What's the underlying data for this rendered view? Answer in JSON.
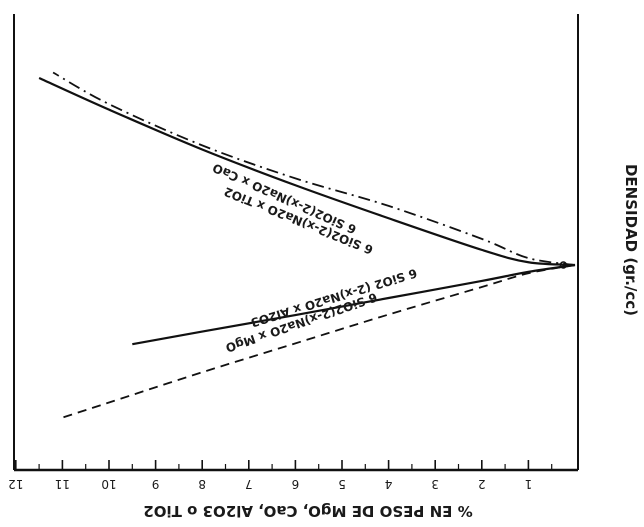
{
  "chart_data": {
    "type": "line",
    "orientation": "rotated-180",
    "xlabel": "% EN PESO DE MgO, CaO, Al2O3 o TiO2",
    "ylabel": "DENSIDAD (gr./cc)",
    "xlim": [
      0,
      12
    ],
    "x_ticks": [
      "1",
      "2",
      "3",
      "4",
      "5",
      "6",
      "7",
      "8",
      "9",
      "10",
      "11",
      "12"
    ],
    "series": [
      {
        "name": "6 SiO2(2-x)Na2O x CaO",
        "style": "solid",
        "points": [
          [
            0,
            0
          ],
          [
            1,
            0.1
          ],
          [
            2,
            0.55
          ],
          [
            4,
            1.7
          ],
          [
            6,
            2.9
          ],
          [
            8,
            4.2
          ],
          [
            10,
            5.65
          ],
          [
            11.5,
            6.8
          ]
        ]
      },
      {
        "name": "6 SiO2(2-x)Na2O x TiO2",
        "style": "dash-dot",
        "points": [
          [
            0,
            0
          ],
          [
            1,
            0.25
          ],
          [
            2,
            0.95
          ],
          [
            4,
            2.15
          ],
          [
            6,
            3.15
          ],
          [
            8,
            4.35
          ],
          [
            10,
            5.85
          ],
          [
            11.2,
            7.0
          ]
        ]
      },
      {
        "name": "6 SiO2 (2-x)Na2O x Al2O3",
        "style": "solid",
        "points": [
          [
            0,
            0
          ],
          [
            1,
            -0.25
          ],
          [
            2,
            -0.58
          ],
          [
            4,
            -1.2
          ],
          [
            6,
            -1.82
          ],
          [
            8,
            -2.42
          ],
          [
            9.5,
            -2.88
          ]
        ]
      },
      {
        "name": "6 SiO2(2-x)Na2O x MgO",
        "style": "dashed",
        "points": [
          [
            0,
            0
          ],
          [
            1,
            -0.3
          ],
          [
            2,
            -0.8
          ],
          [
            4,
            -1.8
          ],
          [
            6,
            -2.85
          ],
          [
            8,
            -3.9
          ],
          [
            10,
            -5.0
          ],
          [
            11,
            -5.55
          ]
        ]
      }
    ]
  }
}
